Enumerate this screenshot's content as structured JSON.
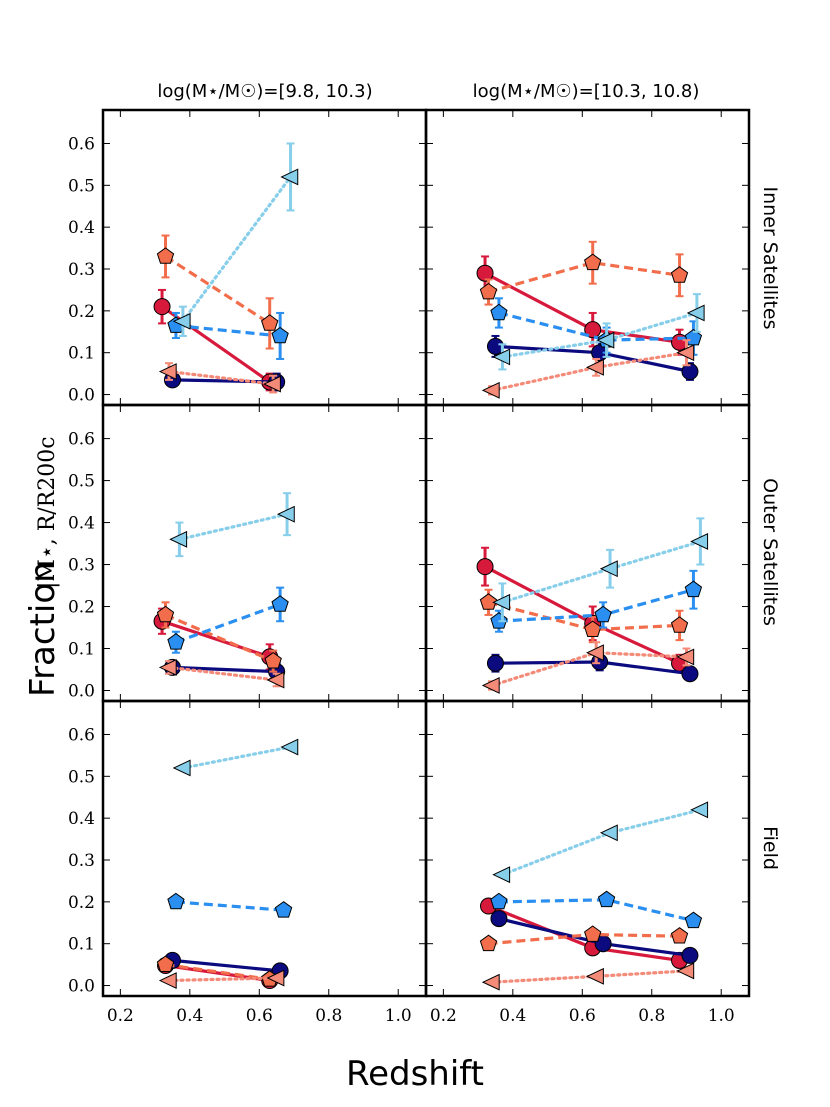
{
  "chart_data": {
    "type": "scatter",
    "xlabel": "Redshift",
    "ylabel": "Fraction",
    "ylabel_subscript": "|M⋆, R/R200c",
    "xlim": [
      0.15,
      1.08
    ],
    "ylim": [
      -0.025,
      0.68
    ],
    "x_ticks": [
      "0.2",
      "0.4",
      "0.6",
      "0.8",
      "1.0"
    ],
    "y_ticks": [
      "0.0",
      "0.1",
      "0.2",
      "0.3",
      "0.4",
      "0.5",
      "0.6"
    ],
    "column_titles": [
      "log(M⋆/M☉)=[9.8, 10.3)",
      "log(M⋆/M☉)=[10.3, 10.8)"
    ],
    "row_labels": [
      "Inner Satellites",
      "Outer Satellites",
      "Field"
    ],
    "colors": {
      "crimson": "#d7193c",
      "navy": "#0b0a7e",
      "salmon": "#f26d4b",
      "blue": "#2a8ff0",
      "light_salmon": "#f48a78",
      "sky": "#87ceea"
    },
    "panels": [
      {
        "row": 0,
        "col": 0,
        "series": [
          {
            "name": "red-circle-solid",
            "color": "crimson",
            "marker": "circle",
            "line": "solid",
            "x": [
              0.32,
              0.63
            ],
            "y": [
              0.21,
              0.03
            ],
            "err": [
              0.04,
              0.02
            ]
          },
          {
            "name": "navy-circle-solid",
            "color": "navy",
            "marker": "circle",
            "line": "solid",
            "x": [
              0.35,
              0.65
            ],
            "y": [
              0.035,
              0.03
            ],
            "err": [
              0.015,
              0.02
            ]
          },
          {
            "name": "salmon-pentagon-dashed",
            "color": "salmon",
            "marker": "pentagon",
            "line": "dashed",
            "x": [
              0.33,
              0.63
            ],
            "y": [
              0.33,
              0.17
            ],
            "err": [
              0.05,
              0.06
            ]
          },
          {
            "name": "blue-pentagon-dashed",
            "color": "blue",
            "marker": "pentagon",
            "line": "dashed",
            "x": [
              0.36,
              0.66
            ],
            "y": [
              0.165,
              0.14
            ],
            "err": [
              0.03,
              0.055
            ]
          },
          {
            "name": "lightsalmon-triangle-dotted",
            "color": "light_salmon",
            "marker": "triangle",
            "line": "dotted",
            "x": [
              0.34,
              0.64
            ],
            "y": [
              0.055,
              0.025
            ],
            "err": [
              0.02,
              0.02
            ]
          },
          {
            "name": "sky-triangle-dotted",
            "color": "sky",
            "marker": "triangle",
            "line": "dotted",
            "x": [
              0.38,
              0.69
            ],
            "y": [
              0.175,
              0.52
            ],
            "err": [
              0.035,
              0.08
            ]
          }
        ]
      },
      {
        "row": 0,
        "col": 1,
        "series": [
          {
            "name": "red-circle-solid",
            "color": "crimson",
            "marker": "circle",
            "line": "solid",
            "x": [
              0.32,
              0.63,
              0.88
            ],
            "y": [
              0.29,
              0.155,
              0.125
            ],
            "err": [
              0.04,
              0.04,
              0.03
            ]
          },
          {
            "name": "navy-circle-solid",
            "color": "navy",
            "marker": "circle",
            "line": "solid",
            "x": [
              0.35,
              0.65,
              0.91
            ],
            "y": [
              0.115,
              0.1,
              0.055
            ],
            "err": [
              0.025,
              0.025,
              0.02
            ]
          },
          {
            "name": "salmon-pentagon-dashed",
            "color": "salmon",
            "marker": "pentagon",
            "line": "dashed",
            "x": [
              0.33,
              0.63,
              0.88
            ],
            "y": [
              0.245,
              0.315,
              0.285
            ],
            "err": [
              0.03,
              0.05,
              0.05
            ]
          },
          {
            "name": "blue-pentagon-dashed",
            "color": "blue",
            "marker": "pentagon",
            "line": "dashed",
            "x": [
              0.36,
              0.67,
              0.92
            ],
            "y": [
              0.195,
              0.13,
              0.135
            ],
            "err": [
              0.035,
              0.03,
              0.04
            ]
          },
          {
            "name": "lightsalmon-triangle-dotted",
            "color": "light_salmon",
            "marker": "triangle",
            "line": "dotted",
            "x": [
              0.34,
              0.64,
              0.9
            ],
            "y": [
              0.01,
              0.065,
              0.1
            ],
            "err": [
              0.01,
              0.02,
              0.03
            ]
          },
          {
            "name": "sky-triangle-dotted",
            "color": "sky",
            "marker": "triangle",
            "line": "dotted",
            "x": [
              0.37,
              0.67,
              0.93
            ],
            "y": [
              0.09,
              0.13,
              0.195
            ],
            "err": [
              0.03,
              0.04,
              0.045
            ]
          }
        ]
      },
      {
        "row": 1,
        "col": 0,
        "series": [
          {
            "name": "red-circle-solid",
            "color": "crimson",
            "marker": "circle",
            "line": "solid",
            "x": [
              0.32,
              0.63
            ],
            "y": [
              0.165,
              0.08
            ],
            "err": [
              0.03,
              0.03
            ]
          },
          {
            "name": "navy-circle-solid",
            "color": "navy",
            "marker": "circle",
            "line": "solid",
            "x": [
              0.35,
              0.65
            ],
            "y": [
              0.055,
              0.045
            ],
            "err": [
              0.015,
              0.02
            ]
          },
          {
            "name": "salmon-pentagon-dashed",
            "color": "salmon",
            "marker": "pentagon",
            "line": "dashed",
            "x": [
              0.33,
              0.64
            ],
            "y": [
              0.18,
              0.07
            ],
            "err": [
              0.03,
              0.025
            ]
          },
          {
            "name": "blue-pentagon-dashed",
            "color": "blue",
            "marker": "pentagon",
            "line": "dashed",
            "x": [
              0.36,
              0.66
            ],
            "y": [
              0.115,
              0.205
            ],
            "err": [
              0.025,
              0.04
            ]
          },
          {
            "name": "lightsalmon-triangle-dotted",
            "color": "light_salmon",
            "marker": "triangle",
            "line": "dotted",
            "x": [
              0.34,
              0.65
            ],
            "y": [
              0.055,
              0.025
            ],
            "err": [
              0.015,
              0.015
            ]
          },
          {
            "name": "sky-triangle-dotted",
            "color": "sky",
            "marker": "triangle",
            "line": "dotted",
            "x": [
              0.37,
              0.68
            ],
            "y": [
              0.36,
              0.42
            ],
            "err": [
              0.04,
              0.05
            ]
          }
        ]
      },
      {
        "row": 1,
        "col": 1,
        "series": [
          {
            "name": "red-circle-solid",
            "color": "crimson",
            "marker": "circle",
            "line": "solid",
            "x": [
              0.32,
              0.63,
              0.88
            ],
            "y": [
              0.295,
              0.16,
              0.065
            ],
            "err": [
              0.045,
              0.04,
              0.02
            ]
          },
          {
            "name": "navy-circle-solid",
            "color": "navy",
            "marker": "circle",
            "line": "solid",
            "x": [
              0.35,
              0.65,
              0.91
            ],
            "y": [
              0.065,
              0.068,
              0.04
            ],
            "err": [
              0.02,
              0.02,
              0.015
            ]
          },
          {
            "name": "salmon-pentagon-dashed",
            "color": "salmon",
            "marker": "pentagon",
            "line": "dashed",
            "x": [
              0.33,
              0.63,
              0.88
            ],
            "y": [
              0.21,
              0.145,
              0.155
            ],
            "err": [
              0.03,
              0.03,
              0.035
            ]
          },
          {
            "name": "blue-pentagon-dashed",
            "color": "blue",
            "marker": "pentagon",
            "line": "dashed",
            "x": [
              0.36,
              0.66,
              0.92
            ],
            "y": [
              0.165,
              0.18,
              0.24
            ],
            "err": [
              0.025,
              0.03,
              0.045
            ]
          },
          {
            "name": "lightsalmon-triangle-dotted",
            "color": "light_salmon",
            "marker": "triangle",
            "line": "dotted",
            "x": [
              0.34,
              0.64,
              0.9
            ],
            "y": [
              0.012,
              0.09,
              0.08
            ],
            "err": [
              0.01,
              0.025,
              0.02
            ]
          },
          {
            "name": "sky-triangle-dotted",
            "color": "sky",
            "marker": "triangle",
            "line": "dotted",
            "x": [
              0.37,
              0.68,
              0.94
            ],
            "y": [
              0.21,
              0.29,
              0.355
            ],
            "err": [
              0.045,
              0.045,
              0.055
            ]
          }
        ]
      },
      {
        "row": 2,
        "col": 0,
        "series": [
          {
            "name": "red-circle-solid",
            "color": "crimson",
            "marker": "circle",
            "line": "solid",
            "x": [
              0.33,
              0.63
            ],
            "y": [
              0.048,
              0.012
            ],
            "err": [
              0,
              0
            ]
          },
          {
            "name": "navy-circle-solid",
            "color": "navy",
            "marker": "circle",
            "line": "solid",
            "x": [
              0.35,
              0.66
            ],
            "y": [
              0.06,
              0.035
            ],
            "err": [
              0,
              0
            ]
          },
          {
            "name": "salmon-pentagon-dashed",
            "color": "salmon",
            "marker": "pentagon",
            "line": "dashed",
            "x": [
              0.33,
              0.63
            ],
            "y": [
              0.05,
              0.015
            ],
            "err": [
              0,
              0
            ]
          },
          {
            "name": "blue-pentagon-dashed",
            "color": "blue",
            "marker": "pentagon",
            "line": "dashed",
            "x": [
              0.36,
              0.67
            ],
            "y": [
              0.2,
              0.18
            ],
            "err": [
              0,
              0
            ]
          },
          {
            "name": "lightsalmon-triangle-dotted",
            "color": "light_salmon",
            "marker": "triangle",
            "line": "dotted",
            "x": [
              0.34,
              0.65
            ],
            "y": [
              0.012,
              0.018
            ],
            "err": [
              0,
              0
            ]
          },
          {
            "name": "sky-triangle-dotted",
            "color": "sky",
            "marker": "triangle",
            "line": "dotted",
            "x": [
              0.38,
              0.69
            ],
            "y": [
              0.52,
              0.57
            ],
            "err": [
              0,
              0
            ]
          }
        ]
      },
      {
        "row": 2,
        "col": 1,
        "series": [
          {
            "name": "red-circle-solid",
            "color": "crimson",
            "marker": "circle",
            "line": "solid",
            "x": [
              0.33,
              0.63,
              0.88
            ],
            "y": [
              0.19,
              0.09,
              0.06
            ],
            "err": [
              0,
              0,
              0
            ]
          },
          {
            "name": "navy-circle-solid",
            "color": "navy",
            "marker": "circle",
            "line": "solid",
            "x": [
              0.36,
              0.66,
              0.91
            ],
            "y": [
              0.16,
              0.1,
              0.072
            ],
            "err": [
              0,
              0,
              0
            ]
          },
          {
            "name": "salmon-pentagon-dashed",
            "color": "salmon",
            "marker": "pentagon",
            "line": "dashed",
            "x": [
              0.33,
              0.63,
              0.88
            ],
            "y": [
              0.1,
              0.122,
              0.118
            ],
            "err": [
              0,
              0,
              0
            ]
          },
          {
            "name": "blue-pentagon-dashed",
            "color": "blue",
            "marker": "pentagon",
            "line": "dashed",
            "x": [
              0.36,
              0.67,
              0.92
            ],
            "y": [
              0.2,
              0.205,
              0.155
            ],
            "err": [
              0,
              0,
              0
            ]
          },
          {
            "name": "lightsalmon-triangle-dotted",
            "color": "light_salmon",
            "marker": "triangle",
            "line": "dotted",
            "x": [
              0.34,
              0.64,
              0.9
            ],
            "y": [
              0.008,
              0.022,
              0.035
            ],
            "err": [
              0,
              0,
              0
            ]
          },
          {
            "name": "sky-triangle-dotted",
            "color": "sky",
            "marker": "triangle",
            "line": "dotted",
            "x": [
              0.37,
              0.68,
              0.94
            ],
            "y": [
              0.265,
              0.365,
              0.42
            ],
            "err": [
              0,
              0,
              0
            ]
          }
        ]
      }
    ]
  }
}
